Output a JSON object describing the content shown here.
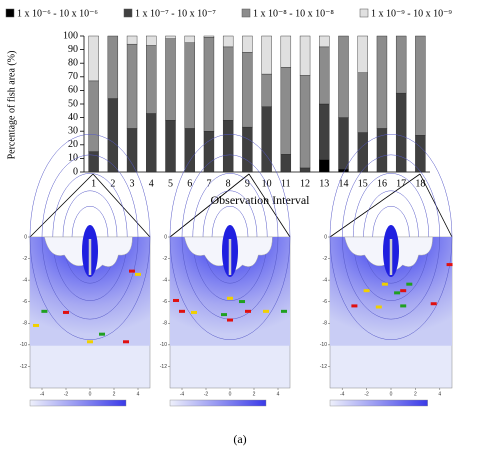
{
  "chart_data": {
    "type": "stacked_bar",
    "y_label": "Percentage of fish area (%)",
    "x_label": "Observation Interval",
    "caption": "(a)",
    "categories": [
      "1",
      "2",
      "3",
      "4",
      "5",
      "6",
      "7",
      "8",
      "9",
      "10",
      "11",
      "12",
      "13",
      "14",
      "15",
      "16",
      "17",
      "18"
    ],
    "series": [
      {
        "name": "1 x 10⁻⁶ - 10 x 10⁻⁶",
        "color": "#000000",
        "values": [
          0,
          0,
          0,
          0,
          0,
          0,
          0,
          0,
          0,
          0,
          0,
          0,
          9,
          2,
          0,
          0,
          0,
          0
        ]
      },
      {
        "name": "1 x 10⁻⁷ - 10 x 10⁻⁷",
        "color": "#404040",
        "values": [
          15,
          54,
          32,
          43,
          38,
          32,
          30,
          38,
          33,
          48,
          13,
          3,
          41,
          38,
          29,
          32,
          58,
          27
        ]
      },
      {
        "name": "1 x 10⁻⁸ - 10 x 10⁻⁸",
        "color": "#8c8c8c",
        "values": [
          52,
          46,
          62,
          50,
          60,
          63,
          69,
          54,
          55,
          24,
          64,
          68,
          42,
          60,
          44,
          68,
          42,
          73
        ]
      },
      {
        "name": "1 x 10⁻⁹ - 10 x 10⁻⁹",
        "color": "#e0e0e0",
        "values": [
          33,
          0,
          6,
          7,
          2,
          5,
          1,
          8,
          12,
          28,
          23,
          29,
          8,
          0,
          27,
          0,
          0,
          0
        ]
      }
    ],
    "ylim": [
      0,
      100
    ],
    "yticks": [
      0,
      10,
      20,
      30,
      40,
      50,
      60,
      70,
      80,
      90,
      100
    ],
    "panels": {
      "yticks": [
        0,
        -2,
        -4,
        -6,
        -8,
        -10,
        -12
      ],
      "xticks": [
        -4,
        -2,
        0,
        2,
        4
      ]
    }
  }
}
